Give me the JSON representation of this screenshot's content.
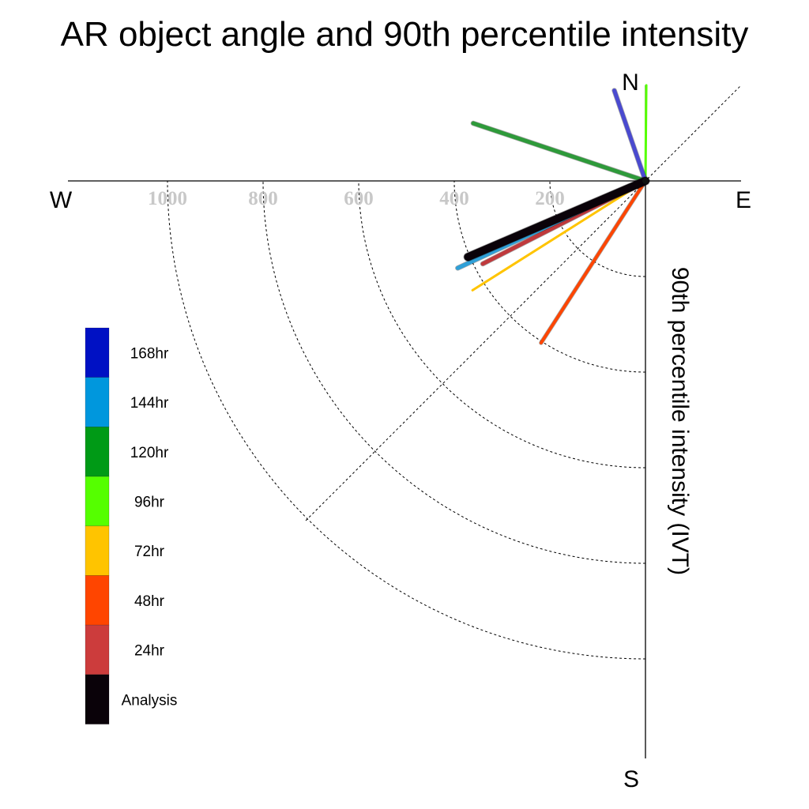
{
  "chart_data": {
    "type": "polar-quadrant-line",
    "title": "AR object angle and 90th percentile intensity",
    "ylabel": "90th percentile intensity (IVT)",
    "compass": {
      "north": "N",
      "south": "S",
      "east": "E",
      "west": "W"
    },
    "rings": [
      200,
      400,
      600,
      800,
      1000
    ],
    "ring_labels": [
      "200",
      "400",
      "600",
      "800",
      "1000"
    ],
    "rmax": 1200,
    "series": [
      {
        "name": "96hr",
        "angle_deg": 89.5,
        "intensity": 200,
        "color": "#55ff00",
        "width": 3
      },
      {
        "name": "168hr",
        "angle_deg": 109.0,
        "intensity": 200,
        "color": "#4a4ad0",
        "width": 5
      },
      {
        "name": "120hr",
        "angle_deg": 161.5,
        "intensity": 380,
        "color": "#2e9a3a",
        "width": 5
      },
      {
        "name": "48hr",
        "angle_deg": 237.2,
        "intensity": 403,
        "color": "#ff4500",
        "width": 4
      },
      {
        "name": "72hr",
        "angle_deg": 212.3,
        "intensity": 428,
        "color": "#ffc400",
        "width": 3
      },
      {
        "name": "24hr",
        "angle_deg": 207.0,
        "intensity": 382,
        "color": "#c0393c",
        "width": 5
      },
      {
        "name": "144hr",
        "angle_deg": 204.9,
        "intensity": 433,
        "color": "#2fa0d8",
        "width": 5
      },
      {
        "name": "Analysis",
        "angle_deg": 203.2,
        "intensity": 404,
        "color": "#0a0209",
        "width": 10
      }
    ],
    "legend": [
      {
        "label": "168hr",
        "color": "#0011c4"
      },
      {
        "label": "144hr",
        "color": "#0097dd"
      },
      {
        "label": "120hr",
        "color": "#009a16"
      },
      {
        "label": "96hr",
        "color": "#55ff00"
      },
      {
        "label": "72hr",
        "color": "#ffc400"
      },
      {
        "label": "48hr",
        "color": "#ff4500"
      },
      {
        "label": "24hr",
        "color": "#cc3c3c"
      },
      {
        "label": "Analysis",
        "color": "#0a0209"
      }
    ]
  }
}
